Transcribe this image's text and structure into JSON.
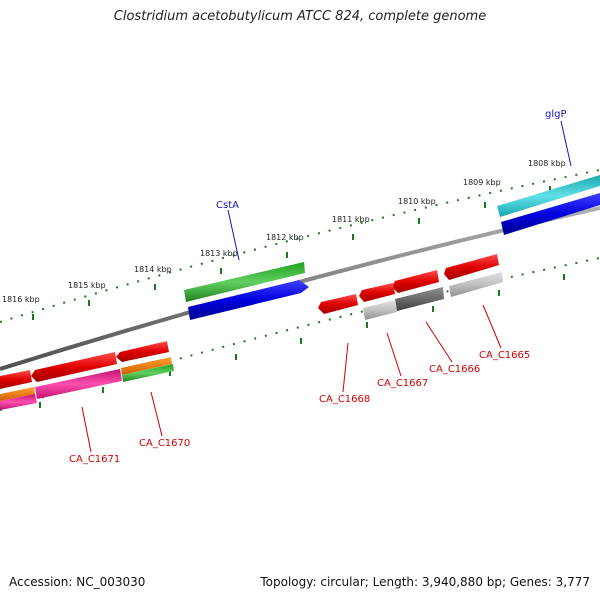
{
  "title": "Clostridium acetobutylicum ATCC 824, complete genome",
  "footer": {
    "accession": "Accession: NC_003030",
    "summary": "Topology: circular; Length: 3,940,880 bp; Genes: 3,777"
  },
  "scale_labels": [
    "1808 kbp",
    "1809 kbp",
    "1810 kbp",
    "1811 kbp",
    "1812 kbp",
    "1813 kbp",
    "1814 kbp",
    "1815 kbp",
    "1816 kbp"
  ],
  "gene_labels": {
    "glgP": "glgP",
    "cstA": "CstA",
    "ca1665": "CA_C1665",
    "ca1666": "CA_C1666",
    "ca1667": "CA_C1667",
    "ca1668": "CA_C1668",
    "ca1670": "CA_C1670",
    "ca1671": "CA_C1671"
  },
  "colors": {
    "backbone": "#808080",
    "tick": "#1a7a1a",
    "forward_blue": "#0000e0",
    "cyan": "#20c0c8",
    "green": "#30b030",
    "red": "#e00000",
    "magenta": "#e02090",
    "orange": "#f08000",
    "gray_light": "#bbbbbb",
    "gray_dark": "#6a6a6a",
    "label_blue": "#1414b4",
    "label_red": "#d00000"
  }
}
